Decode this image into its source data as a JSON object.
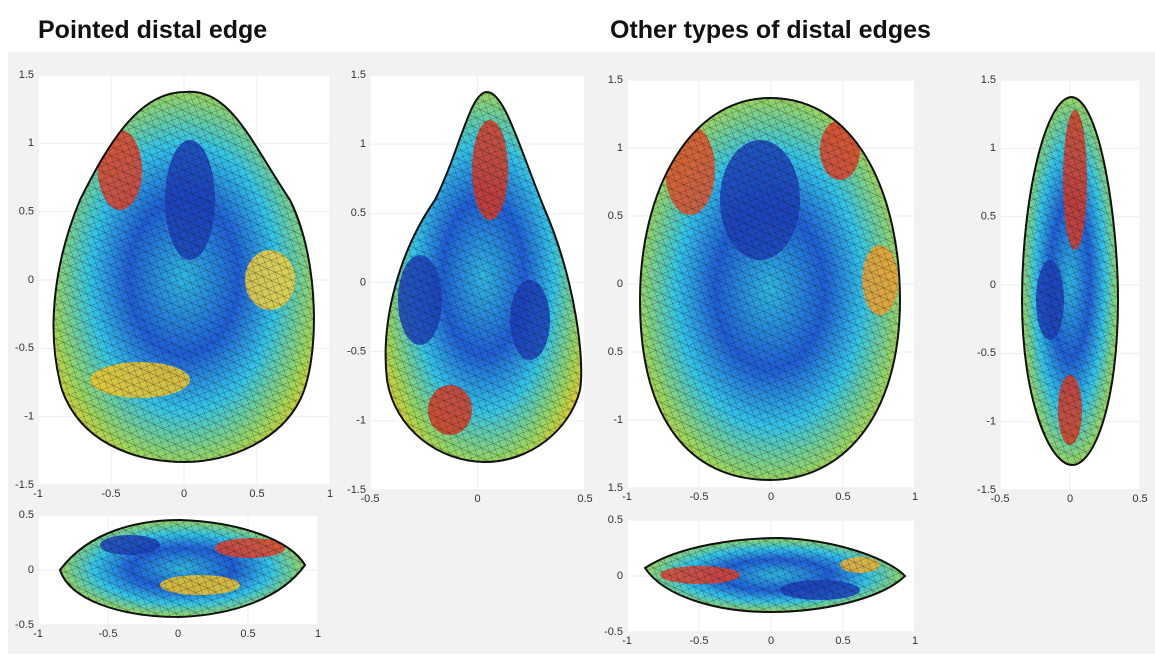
{
  "header": {
    "left_title": "Pointed distal edge",
    "right_title": "Other types of distal edges"
  },
  "panels": [
    {
      "xlim": [
        -1,
        1
      ],
      "ylim": [
        -1.5,
        1.5
      ],
      "xticks": [
        -1,
        -0.5,
        0,
        0.5,
        1
      ],
      "yticks": [
        -1.5,
        -1,
        -0.5,
        0,
        0.5,
        1,
        1.5
      ]
    },
    {
      "xlim": [
        -0.5,
        0.5
      ],
      "ylim": [
        -1.5,
        1.5
      ],
      "xticks": [
        -0.5,
        0,
        0.5
      ],
      "yticks": [
        -1.5,
        -1,
        -0.5,
        0,
        0.5,
        1,
        1.5
      ]
    },
    {
      "xlim": [
        -1,
        1
      ],
      "ylim": [
        -1.5,
        1.5
      ],
      "xticks": [
        -1,
        -0.5,
        0,
        0.5,
        1
      ],
      "yticks": [
        {
          "value": -1.5,
          "label": "1.5"
        },
        -1,
        {
          "value": -0.5,
          "label": "0.5"
        },
        0,
        0.5,
        1,
        1.5
      ]
    },
    {
      "xlim": [
        -0.5,
        0.5
      ],
      "ylim": [
        -1.5,
        1.5
      ],
      "xticks": [
        -0.5,
        0,
        0.5
      ],
      "yticks": [
        -1.5,
        -1,
        -0.5,
        0,
        0.5,
        1,
        1.5
      ]
    },
    {
      "xlim": [
        -1,
        1
      ],
      "ylim": [
        -0.5,
        0.5
      ],
      "xticks": [
        -1,
        -0.5,
        0,
        0.5,
        1
      ],
      "yticks": [
        -0.5,
        0,
        0.5
      ]
    },
    {
      "xlim": [
        -1,
        1
      ],
      "ylim": [
        -0.5,
        0.5
      ],
      "xticks": [
        -1,
        -0.5,
        0,
        0.5,
        1
      ],
      "yticks": [
        -0.5,
        0,
        0.5
      ]
    }
  ]
}
